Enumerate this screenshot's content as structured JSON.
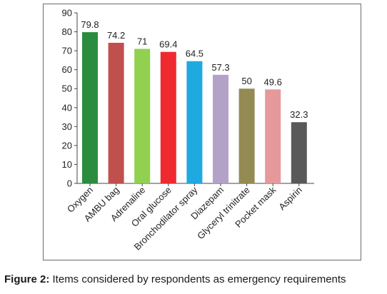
{
  "chart_data": {
    "type": "bar",
    "categories": [
      "Oxygen",
      "AMBU bag",
      "Adrenaline",
      "Oral glucose",
      "Bronchodilator spray",
      "Diazepam",
      "Glyceryl trinitrate",
      "Pocket mask",
      "Aspirin"
    ],
    "values": [
      79.8,
      74.2,
      71,
      69.4,
      64.5,
      57.3,
      50,
      49.6,
      32.3
    ],
    "value_labels": [
      "79.8",
      "74.2",
      "71",
      "69.4",
      "64.5",
      "57.3",
      "50",
      "49.6",
      "32.3"
    ],
    "colors": [
      "#2a8c3e",
      "#c0504d",
      "#92d050",
      "#ee2a2f",
      "#1fa9e1",
      "#b3a2c7",
      "#948a54",
      "#e6999b",
      "#595959"
    ],
    "ylim": [
      0,
      90
    ],
    "yticks": [
      0,
      10,
      20,
      30,
      40,
      50,
      60,
      70,
      80,
      90
    ],
    "grid": false,
    "xlabel": "",
    "ylabel": ""
  },
  "caption": {
    "label": "Figure 2:",
    "text": " Items considered by respondents as emergency requirements"
  }
}
